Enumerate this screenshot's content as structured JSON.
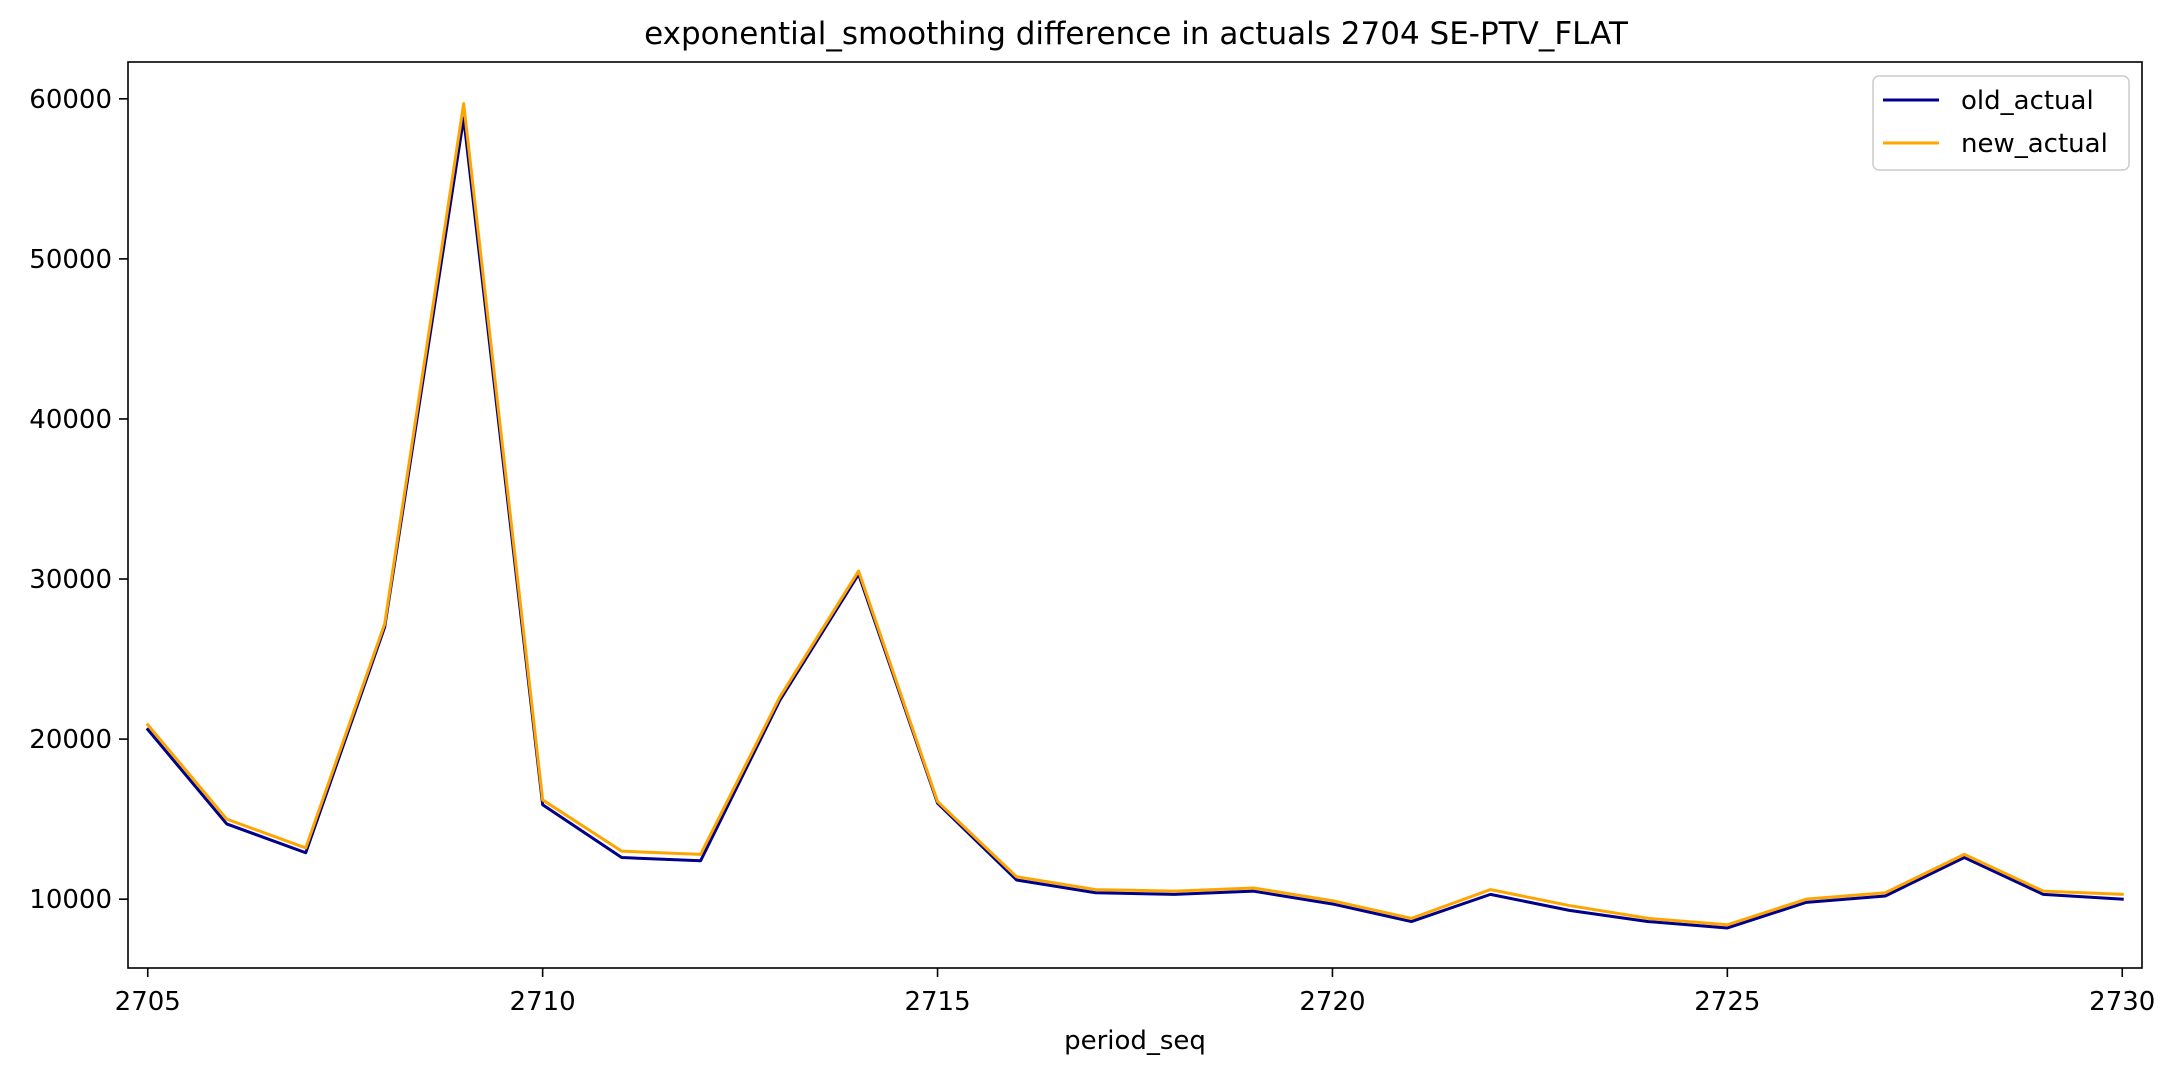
{
  "chart_data": {
    "type": "line",
    "title": "exponential_smoothing difference in actuals 2704 SE-PTV_FLAT",
    "xlabel": "period_seq",
    "ylabel": "",
    "xlim": [
      2704.75,
      2730.25
    ],
    "ylim": [
      5700,
      62300
    ],
    "xticks": [
      2705,
      2710,
      2715,
      2720,
      2725,
      2730
    ],
    "yticks": [
      10000,
      20000,
      30000,
      40000,
      50000,
      60000
    ],
    "grid": false,
    "legend_position": "top-right",
    "x": [
      2705,
      2706,
      2707,
      2708,
      2709,
      2710,
      2711,
      2712,
      2713,
      2714,
      2715,
      2716,
      2717,
      2718,
      2719,
      2720,
      2721,
      2722,
      2723,
      2724,
      2725,
      2726,
      2727,
      2728,
      2729,
      2730
    ],
    "series": [
      {
        "name": "old_actual",
        "color": "#00008b",
        "values": [
          20600,
          14700,
          12900,
          27000,
          58800,
          15900,
          12600,
          12400,
          22400,
          30300,
          16000,
          11200,
          10400,
          10300,
          10500,
          9700,
          8600,
          10300,
          9300,
          8600,
          8200,
          9800,
          10200,
          12600,
          10300,
          10000
        ]
      },
      {
        "name": "new_actual",
        "color": "#ffa500",
        "values": [
          20900,
          15000,
          13200,
          27200,
          59700,
          16200,
          13000,
          12800,
          22600,
          30500,
          16100,
          11400,
          10600,
          10500,
          10700,
          9900,
          8800,
          10600,
          9600,
          8800,
          8400,
          10000,
          10400,
          12800,
          10500,
          10300
        ]
      }
    ]
  }
}
